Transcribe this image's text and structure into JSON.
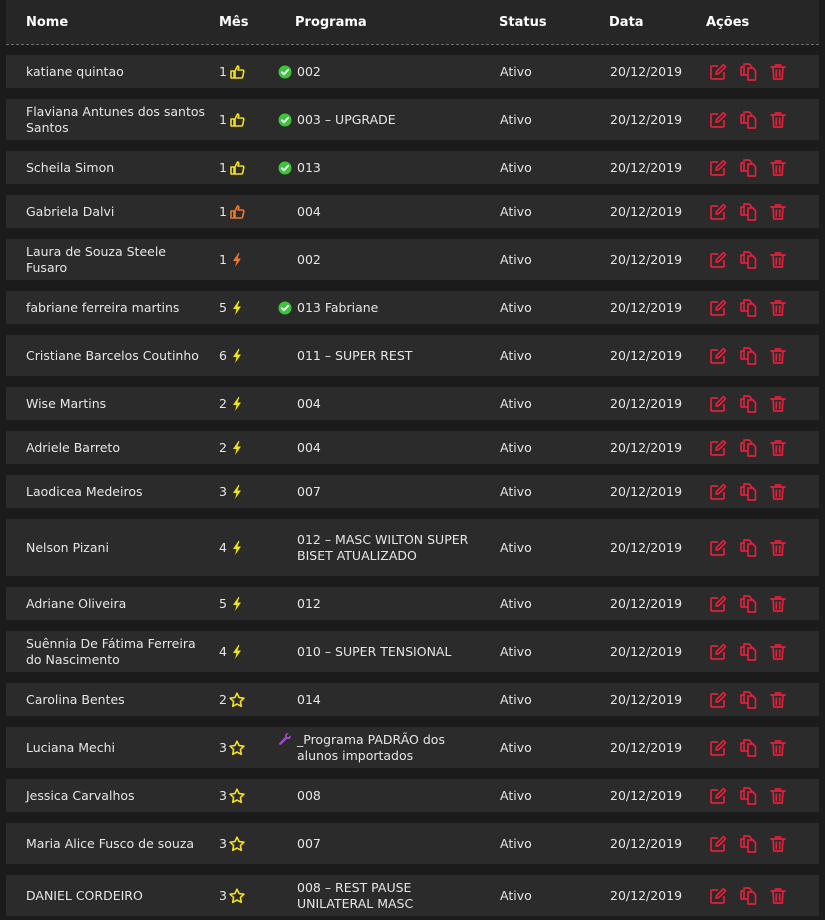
{
  "header": {
    "nome": "Nome",
    "mes": "Mês",
    "programa": "Programa",
    "status": "Status",
    "data": "Data",
    "acoes": "Ações"
  },
  "rows": [
    {
      "nome": "katiane quintao",
      "mes": "1",
      "icon": "thumb-yellow",
      "prefix": "check",
      "programa": "002",
      "status": "Ativo",
      "data": "20/12/2019"
    },
    {
      "nome": "Flaviana Antunes dos santos Santos",
      "mes": "1",
      "icon": "thumb-yellow",
      "prefix": "check",
      "programa": "003 – UPGRADE",
      "status": "Ativo",
      "data": "20/12/2019"
    },
    {
      "nome": "Scheila Simon",
      "mes": "1",
      "icon": "thumb-yellow",
      "prefix": "check",
      "programa": "013",
      "status": "Ativo",
      "data": "20/12/2019"
    },
    {
      "nome": "Gabriela Dalvi",
      "mes": "1",
      "icon": "thumb-orange",
      "prefix": "",
      "programa": "004",
      "status": "Ativo",
      "data": "20/12/2019"
    },
    {
      "nome": "Laura de Souza Steele Fusaro",
      "mes": "1",
      "icon": "bolt-orange",
      "prefix": "",
      "programa": "002",
      "status": "Ativo",
      "data": "20/12/2019"
    },
    {
      "nome": "fabriane ferreira martins",
      "mes": "5",
      "icon": "bolt-yellow",
      "prefix": "check",
      "programa": "013 Fabriane",
      "status": "Ativo",
      "data": "20/12/2019"
    },
    {
      "nome": "Cristiane Barcelos Coutinho",
      "mes": "6",
      "icon": "bolt-yellow",
      "prefix": "",
      "programa": "011 – SUPER REST",
      "status": "Ativo",
      "data": "20/12/2019"
    },
    {
      "nome": "Wise Martins",
      "mes": "2",
      "icon": "bolt-yellow",
      "prefix": "",
      "programa": "004",
      "status": "Ativo",
      "data": "20/12/2019"
    },
    {
      "nome": "Adriele Barreto",
      "mes": "2",
      "icon": "bolt-yellow",
      "prefix": "",
      "programa": "004",
      "status": "Ativo",
      "data": "20/12/2019"
    },
    {
      "nome": "Laodicea Medeiros",
      "mes": "3",
      "icon": "bolt-yellow",
      "prefix": "",
      "programa": "007",
      "status": "Ativo",
      "data": "20/12/2019"
    },
    {
      "nome": "Nelson Pizani",
      "mes": "4",
      "icon": "bolt-yellow",
      "prefix": "",
      "programa": "012 – MASC WILTON SUPER BISET ATUALIZADO",
      "status": "Ativo",
      "data": "20/12/2019"
    },
    {
      "nome": "Adriane Oliveira",
      "mes": "5",
      "icon": "bolt-yellow",
      "prefix": "",
      "programa": "012",
      "status": "Ativo",
      "data": "20/12/2019"
    },
    {
      "nome": "Suênnia De Fátima Ferreira do Nascimento",
      "mes": "4",
      "icon": "bolt-yellow",
      "prefix": "",
      "programa": "010 – SUPER TENSIONAL",
      "status": "Ativo",
      "data": "20/12/2019"
    },
    {
      "nome": "Carolina Bentes",
      "mes": "2",
      "icon": "star-yellow",
      "prefix": "",
      "programa": "014",
      "status": "Ativo",
      "data": "20/12/2019"
    },
    {
      "nome": "Luciana Mechi",
      "mes": "3",
      "icon": "star-yellow",
      "prefix": "wrench",
      "programa": "_Programa PADRÃO dos alunos importados",
      "status": "Ativo",
      "data": "20/12/2019"
    },
    {
      "nome": "Jessica Carvalhos",
      "mes": "3",
      "icon": "star-yellow",
      "prefix": "",
      "programa": "008",
      "status": "Ativo",
      "data": "20/12/2019"
    },
    {
      "nome": "Maria Alice Fusco de souza",
      "mes": "3",
      "icon": "star-yellow",
      "prefix": "",
      "programa": "007",
      "status": "Ativo",
      "data": "20/12/2019"
    },
    {
      "nome": "DANIEL CORDEIRO",
      "mes": "3",
      "icon": "star-yellow",
      "prefix": "",
      "programa": "008 – REST PAUSE UNILATERAL MASC",
      "status": "Ativo",
      "data": "20/12/2019"
    }
  ],
  "actions": [
    "edit-icon",
    "copy-icon",
    "trash-icon"
  ],
  "colors": {
    "accent_red": "#e0213b",
    "yellow": "#f3e21b",
    "orange": "#f0792a",
    "green_check": "#3cc43c",
    "purple_wrench": "#a24bd1"
  }
}
